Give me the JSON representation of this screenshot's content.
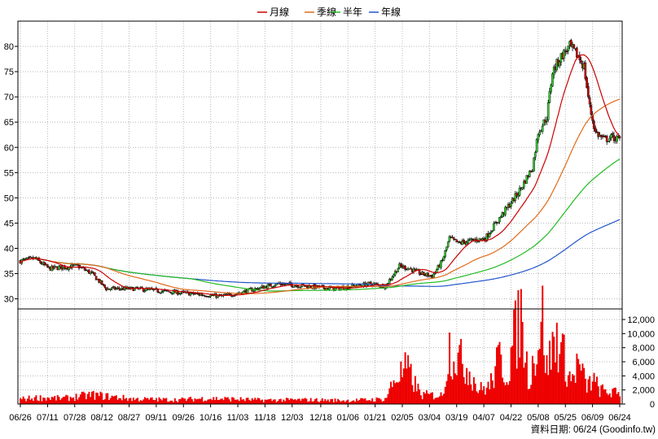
{
  "legend": [
    {
      "label": "月線",
      "color": "#cc0000"
    },
    {
      "label": "季線",
      "color": "#e06a1a"
    },
    {
      "label": "半年",
      "color": "#22bb22"
    },
    {
      "label": "年線",
      "color": "#2255cc"
    }
  ],
  "footer_text": "資料日期: 06/24   (Goodinfo.tw)",
  "chart_data": [
    {
      "type": "candlestick",
      "title": "",
      "x_tick_labels": [
        "06/26",
        "07/11",
        "07/28",
        "08/12",
        "08/27",
        "09/11",
        "09/26",
        "10/16",
        "11/03",
        "11/18",
        "12/03",
        "12/18",
        "01/06",
        "01/21",
        "02/05",
        "03/04",
        "03/19",
        "04/07",
        "04/22",
        "05/08",
        "05/25",
        "06/09",
        "06/24"
      ],
      "y_ticks": [
        30,
        35,
        40,
        45,
        50,
        55,
        60,
        65,
        70,
        75,
        80
      ],
      "ylim": [
        28,
        85
      ],
      "up_color": "#33cc33",
      "down_color": "#cc0000",
      "series_colors": {
        "monthly": "#cc0000",
        "quarterly": "#e06a1a",
        "half_year": "#22bb22",
        "yearly": "#2255cc"
      },
      "price_anchors": [
        [
          0,
          37.5
        ],
        [
          10,
          38
        ],
        [
          20,
          36
        ],
        [
          40,
          36.5
        ],
        [
          50,
          35
        ],
        [
          60,
          32
        ],
        [
          80,
          32
        ],
        [
          100,
          31.5
        ],
        [
          120,
          31
        ],
        [
          140,
          30.5
        ],
        [
          150,
          31
        ],
        [
          165,
          32
        ],
        [
          180,
          33
        ],
        [
          200,
          32.5
        ],
        [
          220,
          32
        ],
        [
          245,
          33
        ],
        [
          255,
          32.5
        ],
        [
          265,
          36.5
        ],
        [
          272,
          36
        ],
        [
          280,
          35
        ],
        [
          288,
          34.5
        ],
        [
          295,
          37.5
        ],
        [
          300,
          42
        ],
        [
          306,
          41
        ],
        [
          315,
          41.5
        ],
        [
          325,
          42
        ],
        [
          335,
          46
        ],
        [
          348,
          51
        ],
        [
          358,
          56
        ],
        [
          362,
          63
        ],
        [
          368,
          66
        ],
        [
          372,
          75
        ],
        [
          378,
          78
        ],
        [
          384,
          80
        ],
        [
          390,
          78
        ],
        [
          394,
          76
        ],
        [
          398,
          68
        ],
        [
          402,
          63
        ],
        [
          408,
          61.5
        ],
        [
          414,
          62
        ],
        [
          419,
          61.5
        ]
      ],
      "volume": {
        "yticks": [
          0,
          2000,
          4000,
          6000,
          8000,
          10000,
          12000
        ],
        "ytick_labels": [
          "0",
          "2,000",
          "4,000",
          "6,000",
          "8,000",
          "10,000",
          "12,000"
        ],
        "ylim": [
          0,
          13500
        ],
        "color": "#ee0000",
        "anchors": [
          [
            0,
            700
          ],
          [
            12,
            900
          ],
          [
            30,
            800
          ],
          [
            50,
            1300
          ],
          [
            60,
            1100
          ],
          [
            80,
            700
          ],
          [
            110,
            600
          ],
          [
            130,
            800
          ],
          [
            150,
            700
          ],
          [
            170,
            550
          ],
          [
            200,
            600
          ],
          [
            230,
            500
          ],
          [
            255,
            700
          ],
          [
            262,
            3600
          ],
          [
            270,
            5000
          ],
          [
            280,
            1300
          ],
          [
            295,
            1200
          ],
          [
            300,
            8000
          ],
          [
            306,
            6500
          ],
          [
            315,
            4500
          ],
          [
            320,
            2000
          ],
          [
            328,
            2500
          ],
          [
            335,
            6500
          ],
          [
            340,
            4000
          ],
          [
            345,
            9000
          ],
          [
            350,
            12500
          ],
          [
            355,
            3800
          ],
          [
            360,
            7000
          ],
          [
            365,
            12000
          ],
          [
            368,
            5000
          ],
          [
            372,
            8000
          ],
          [
            376,
            9500
          ],
          [
            380,
            6500
          ],
          [
            385,
            3200
          ],
          [
            390,
            5800
          ],
          [
            396,
            2400
          ],
          [
            400,
            3500
          ],
          [
            405,
            2000
          ],
          [
            410,
            1700
          ],
          [
            419,
            1500
          ]
        ]
      }
    }
  ]
}
